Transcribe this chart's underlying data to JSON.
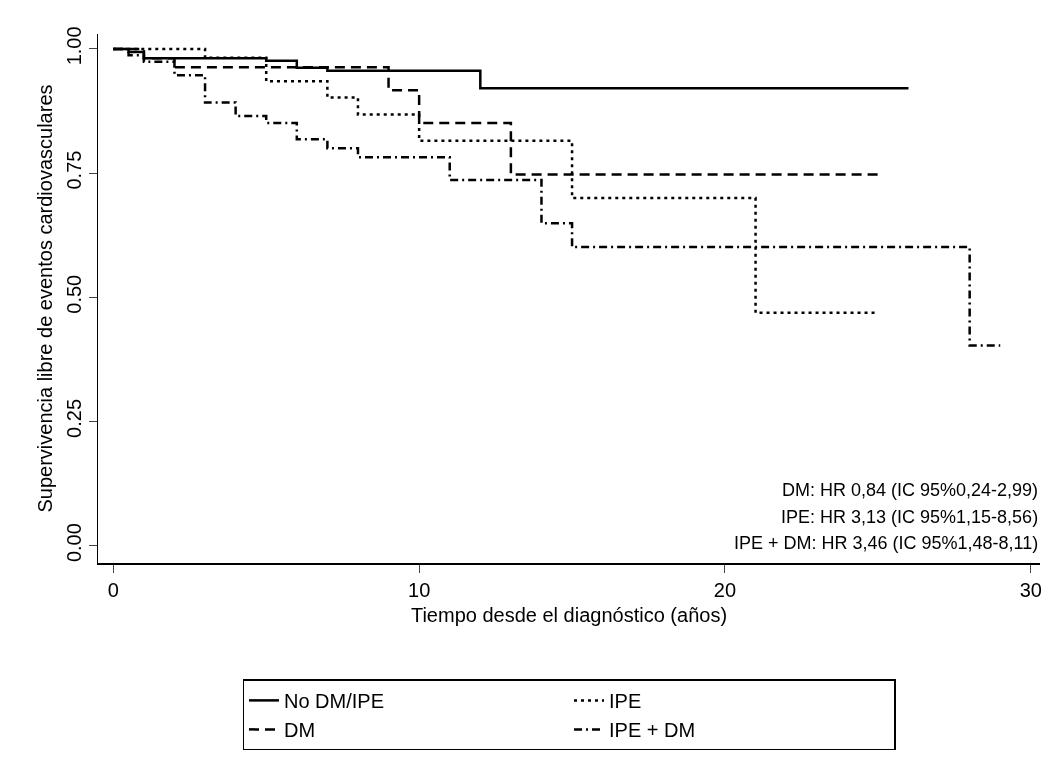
{
  "chart_data": {
    "type": "step",
    "xlabel": "Tiempo desde el diagnóstico (años)",
    "ylabel": "Supervivencia libre de eventos cardiovasculares",
    "xlim": [
      -0.5,
      30.3
    ],
    "xticks": [
      0,
      10,
      20,
      30
    ],
    "ylim": [
      -0.035,
      1.03
    ],
    "yticks": [
      {
        "value": 0,
        "label": "0.00"
      },
      0.25,
      {
        "value": 0.5,
        "label": "0.50"
      },
      0.75,
      {
        "value": 1,
        "label": "1.00"
      }
    ],
    "grid": false,
    "legend": "bottom",
    "marker": "none",
    "annotations": [
      "DM: HR 0,84 (IC 95%0,24-2,99)",
      "IPE: HR 3,13 (IC 95%1,15-8,56)",
      "IPE + DM: HR 3,46 (IC 95%1,48-8,11)"
    ],
    "series": [
      {
        "name": "No DM/IPE",
        "color": "#000000",
        "line_style": "solid",
        "x": [
          0,
          0.5,
          1,
          5,
          6,
          7,
          12,
          26
        ],
        "values": [
          1,
          0.994,
          0.981,
          0.976,
          0.962,
          0.956,
          0.921,
          0.921
        ]
      },
      {
        "name": "IPE",
        "color": "#000000",
        "line_style": "dotted",
        "x": [
          0,
          3,
          5,
          7,
          8,
          10,
          15,
          21,
          25
        ],
        "values": [
          1,
          0.982,
          0.935,
          0.902,
          0.868,
          0.815,
          0.7,
          0.469,
          0.469
        ]
      },
      {
        "name": "DM",
        "color": "#000000",
        "line_style": "dashed",
        "x": [
          0,
          1,
          2,
          9,
          10,
          13,
          25
        ],
        "values": [
          1,
          0.981,
          0.963,
          0.917,
          0.851,
          0.747,
          0.747
        ]
      },
      {
        "name": "IPE + DM",
        "color": "#000000",
        "line_style": "dashdot",
        "x": [
          0,
          0.5,
          1,
          2,
          3,
          4,
          5,
          6,
          7,
          8,
          11,
          14,
          15,
          28,
          29
        ],
        "values": [
          1,
          0.987,
          0.974,
          0.947,
          0.892,
          0.865,
          0.851,
          0.818,
          0.8,
          0.782,
          0.736,
          0.649,
          0.601,
          0.403,
          0.403
        ]
      }
    ]
  }
}
